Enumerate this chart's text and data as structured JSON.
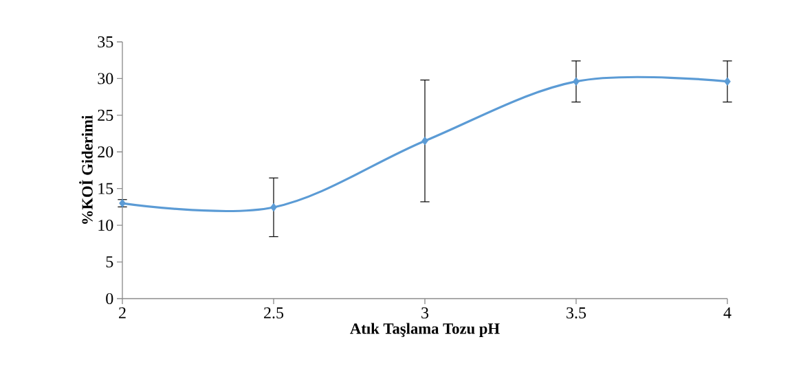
{
  "chart_data": {
    "type": "line",
    "xlabel": "Atık Taşlama Tozu pH",
    "ylabel": "%KOİ Giderimi",
    "x": [
      2,
      2.5,
      3,
      3.5,
      4
    ],
    "series": [
      {
        "color": "#5b9bd5",
        "values": [
          13.0,
          12.45,
          21.5,
          29.6,
          29.6
        ],
        "errors": [
          0.5,
          4.0,
          8.3,
          2.8,
          2.8
        ]
      }
    ],
    "xlim": [
      2,
      4
    ],
    "xticks": [
      2,
      2.5,
      3,
      3.5,
      4
    ],
    "ylim": [
      0,
      35
    ],
    "yticks": [
      0,
      5,
      10,
      15,
      20,
      25,
      30,
      35
    ],
    "marker": "diamond",
    "line_style": "solid"
  }
}
